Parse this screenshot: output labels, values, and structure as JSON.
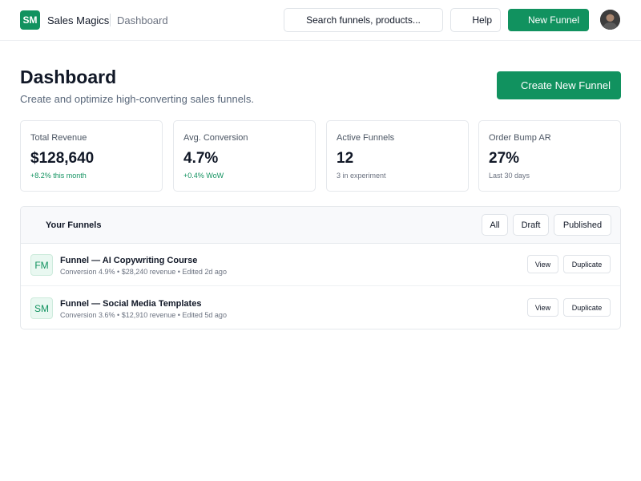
{
  "app": {
    "logo_text": "SM",
    "brand": "Sales Magics",
    "breadcrumb": "Dashboard"
  },
  "topbar": {
    "search_text": "Search funnels, products...",
    "help_label": "Help",
    "new_funnel_label": "New Funnel"
  },
  "page": {
    "title": "Dashboard",
    "subtitle": "Create and optimize high-converting sales funnels.",
    "create_label": "Create New Funnel"
  },
  "stats": [
    {
      "label": "Total Revenue",
      "value": "$128,640",
      "sub": "+8.2% this month",
      "positive": true
    },
    {
      "label": "Avg. Conversion",
      "value": "4.7%",
      "sub": "+0.4% WoW",
      "positive": true
    },
    {
      "label": "Active Funnels",
      "value": "12",
      "sub": "3 in experiment",
      "positive": false
    },
    {
      "label": "Order Bump AR",
      "value": "27%",
      "sub": "Last 30 days",
      "positive": false
    }
  ],
  "funnels": {
    "title": "Your Funnels",
    "filters": [
      "All",
      "Draft",
      "Published"
    ],
    "items": [
      {
        "initials": "FM",
        "name": "Funnel — AI Copywriting Course",
        "meta": "Conversion 4.9% • $28,240 revenue • Edited 2d ago",
        "view_label": "View",
        "duplicate_label": "Duplicate"
      },
      {
        "initials": "SM",
        "name": "Funnel — Social Media Templates",
        "meta": "Conversion 3.6% • $12,910 revenue • Edited 5d ago",
        "view_label": "View",
        "duplicate_label": "Duplicate"
      }
    ]
  },
  "colors": {
    "accent": "#11925f",
    "text": "#111827",
    "muted": "#6b7280"
  }
}
